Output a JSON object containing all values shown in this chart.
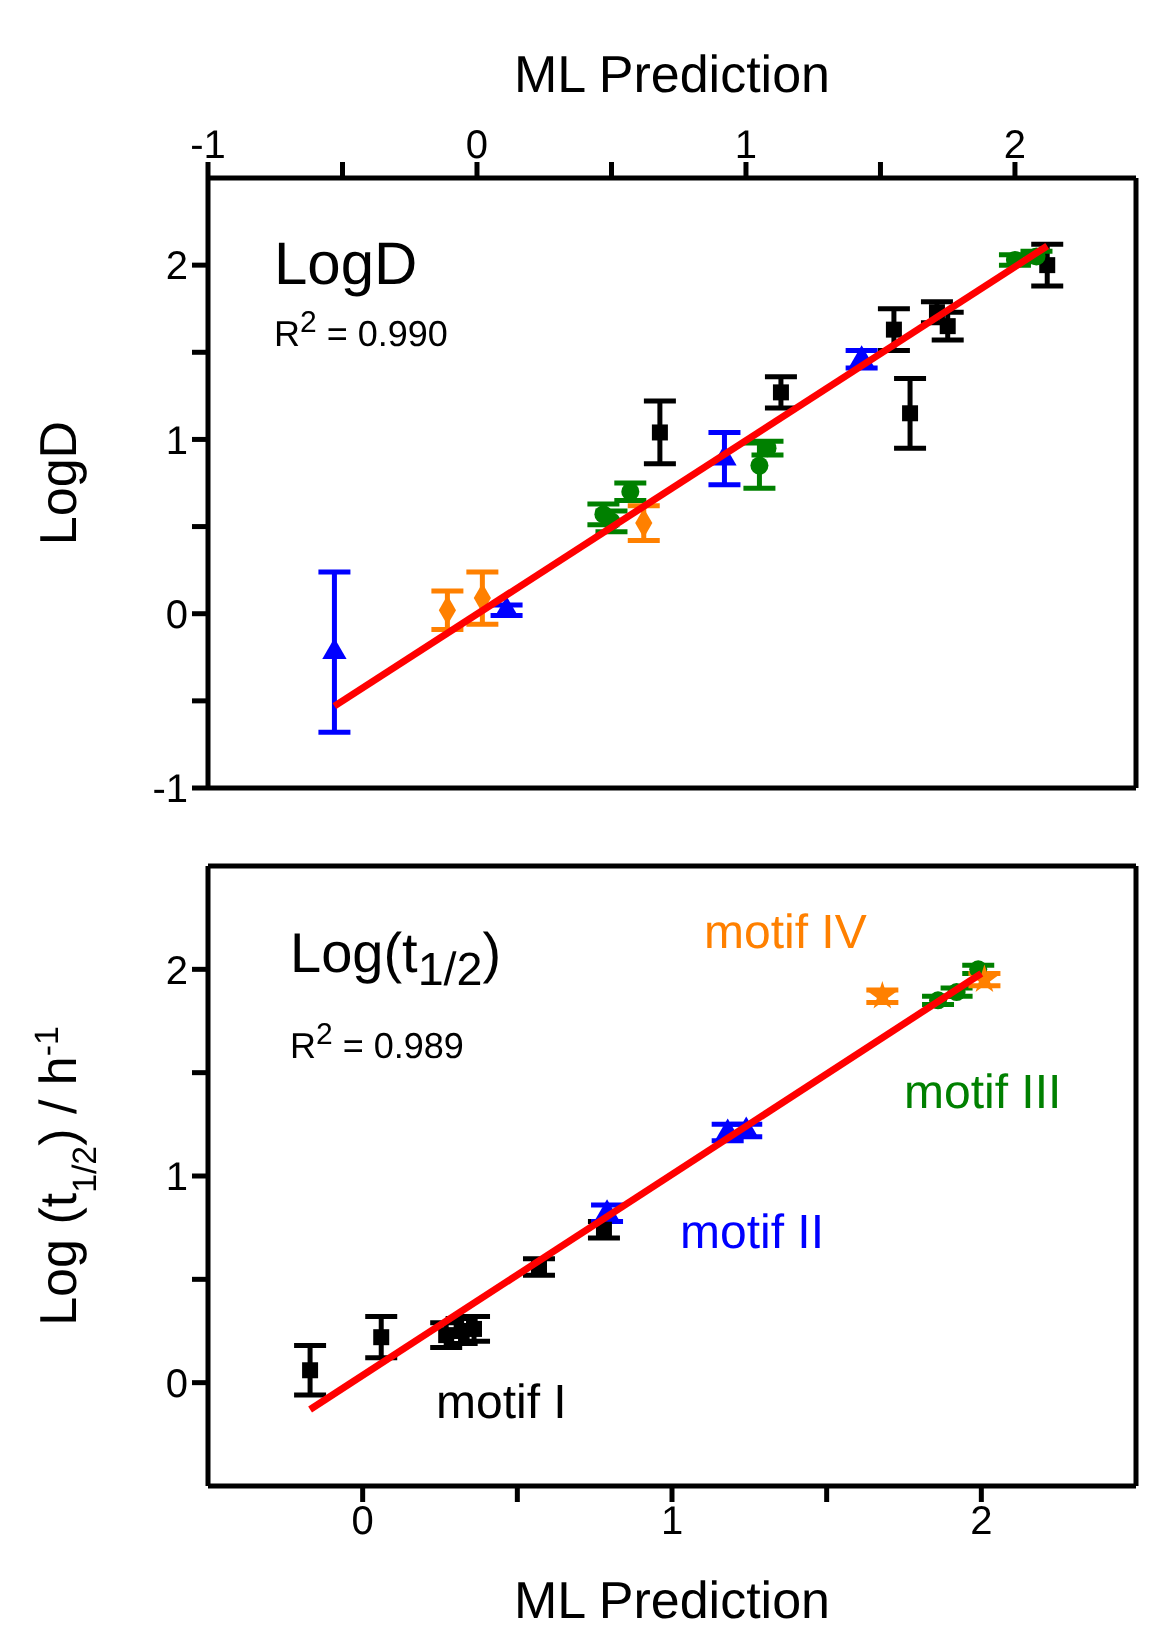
{
  "chart_data": [
    {
      "type": "scatter",
      "xlabel": "ML Prediction",
      "ylabel": "LogD",
      "xlim": [
        -1,
        2.45
      ],
      "xticks": [
        -1,
        {
          "value": -0.5,
          "label": null
        },
        0,
        {
          "value": 0.5,
          "label": null
        },
        1,
        {
          "value": 1.5,
          "label": null
        },
        2
      ],
      "ylim": [
        -1,
        2.5
      ],
      "yticks": [
        -1,
        {
          "value": -0.5,
          "label": null
        },
        0,
        {
          "value": 0.5,
          "label": null
        },
        1,
        {
          "value": 1.5,
          "label": null
        },
        2
      ],
      "annotations": [
        "LogD",
        "R$^{2}$ = 0.990"
      ],
      "series": [
        {
          "color": "#000000",
          "marker": "square",
          "x": [
            0.68,
            1.13,
            1.55,
            1.61,
            1.71,
            1.75,
            2.12
          ],
          "values": [
            1.04,
            1.27,
            1.63,
            1.15,
            1.73,
            1.65,
            2.0
          ],
          "errors": [
            0.18,
            0.09,
            0.12,
            0.2,
            0.06,
            0.08,
            0.12
          ]
        },
        {
          "color": "#0000ff",
          "marker": "triangle",
          "x": [
            -0.53,
            0.11,
            0.92,
            1.43
          ],
          "values": [
            -0.22,
            0.02,
            0.89,
            1.46
          ],
          "errors": [
            0.46,
            0.03,
            0.15,
            0.05
          ]
        },
        {
          "color": "#008000",
          "marker": "circle",
          "x": [
            0.47,
            0.5,
            0.57,
            1.05,
            1.08,
            2.0,
            2.08
          ],
          "values": [
            0.57,
            0.53,
            0.7,
            0.85,
            0.95,
            2.03,
            2.05
          ],
          "errors": [
            0.06,
            0.06,
            0.05,
            0.13,
            0.04,
            0.03,
            0.03
          ]
        },
        {
          "color": "#ff8000",
          "marker": "diamond",
          "x": [
            -0.11,
            0.02,
            0.62
          ],
          "values": [
            0.02,
            0.09,
            0.52
          ],
          "errors": [
            0.11,
            0.15,
            0.1
          ]
        },
        {
          "type": "line",
          "color": "#ff0000",
          "marker": "none",
          "x": [
            -0.53,
            2.12
          ],
          "values": [
            -0.53,
            2.11
          ]
        }
      ]
    },
    {
      "type": "scatter",
      "xlabel": "ML Prediction",
      "ylabel": "Log (t$_{1/2}$) / h$^{-1}$",
      "xlim": [
        -0.5,
        2.5
      ],
      "xticks": [
        0,
        {
          "value": 0.5,
          "label": null
        },
        1,
        {
          "value": 1.5,
          "label": null
        },
        2
      ],
      "ylim": [
        -0.5,
        2.5
      ],
      "yticks": [
        0,
        {
          "value": 0.5,
          "label": null
        },
        1,
        {
          "value": 1.5,
          "label": null
        },
        2
      ],
      "annotations": [
        "Log(t$_{1/2}$)",
        "R$^{2}$ = 0.989"
      ],
      "series": [
        {
          "name": "motif I",
          "color": "#000000",
          "marker": "square",
          "x": [
            -0.17,
            0.06,
            0.27,
            0.32,
            0.36,
            0.57,
            0.78
          ],
          "values": [
            0.06,
            0.22,
            0.23,
            0.25,
            0.26,
            0.56,
            0.74
          ],
          "errors": [
            0.12,
            0.1,
            0.06,
            0.06,
            0.06,
            0.04,
            0.04
          ]
        },
        {
          "name": "motif II",
          "color": "#0000ff",
          "marker": "triangle",
          "x": [
            0.79,
            1.18,
            1.24
          ],
          "values": [
            0.82,
            1.21,
            1.22
          ],
          "errors": [
            0.04,
            0.04,
            0.03
          ]
        },
        {
          "name": "motif III",
          "color": "#008000",
          "marker": "circle",
          "x": [
            1.86,
            1.92,
            1.99
          ],
          "values": [
            1.85,
            1.89,
            2.0
          ],
          "errors": [
            0.02,
            0.02,
            0.02
          ]
        },
        {
          "name": "motif IV",
          "color": "#ff8000",
          "marker": "star",
          "x": [
            1.68,
            2.01
          ],
          "values": [
            1.87,
            1.95
          ],
          "errors": [
            0.03,
            0.03
          ]
        },
        {
          "type": "line",
          "color": "#ff0000",
          "marker": "none",
          "x": [
            -0.17,
            2.0
          ],
          "values": [
            -0.13,
            1.98
          ]
        }
      ]
    }
  ]
}
